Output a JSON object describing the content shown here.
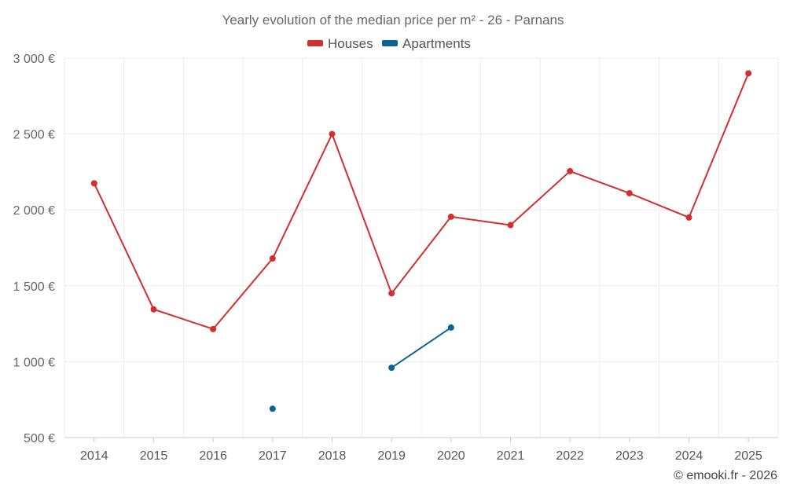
{
  "chart_data": {
    "type": "line",
    "title": "Yearly evolution of the median price per m² - 26 - Parnans",
    "categories": [
      "2014",
      "2015",
      "2016",
      "2017",
      "2018",
      "2019",
      "2020",
      "2021",
      "2022",
      "2023",
      "2024",
      "2025"
    ],
    "series": [
      {
        "name": "Houses",
        "color": "#d32f2f",
        "values": [
          2175,
          1345,
          1215,
          1680,
          2500,
          1450,
          1955,
          1900,
          2255,
          2110,
          1950,
          2900
        ]
      },
      {
        "name": "Apartments",
        "color": "#0b6496",
        "values": [
          null,
          null,
          null,
          690,
          null,
          960,
          1225,
          null,
          null,
          null,
          null,
          null
        ]
      }
    ],
    "ylim": [
      500,
      3000
    ],
    "yticks": [
      500,
      1000,
      1500,
      2000,
      2500,
      3000
    ],
    "ytick_labels": [
      "500 €",
      "1 000 €",
      "1 500 €",
      "2 000 €",
      "2 500 €",
      "3 000 €"
    ],
    "legend_position": "top-center",
    "grid": true,
    "xlabel": "",
    "ylabel": ""
  },
  "credit": "© emooki.fr - 2026"
}
